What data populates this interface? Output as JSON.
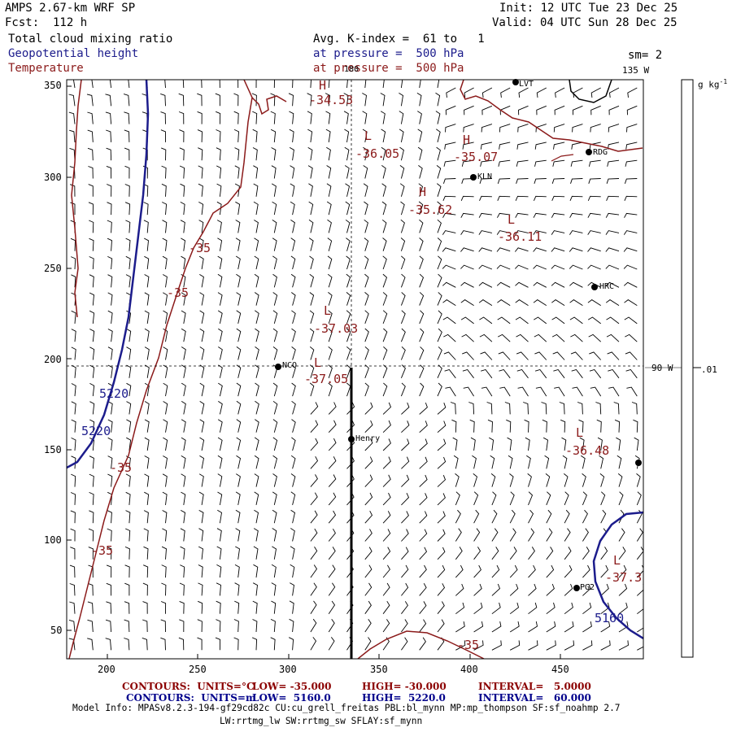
{
  "header": {
    "model": "AMPS 2.67-km WRF SP",
    "forecast": "Fcst:  112 h",
    "init": "Init: 12 UTC Tue 23 Dec 25",
    "valid": "Valid: 04 UTC Sun 28 Dec 25",
    "field1": "Total cloud mixing ratio",
    "field2": "Geopotential height",
    "field3": "Temperature",
    "avg_line": "Avg. K-index =  61 to   1",
    "pressure_line_1": "at pressure =  500 hPa",
    "pressure_line_2": "at pressure =  500 hPa",
    "smoothing": "sm= 2"
  },
  "axes": {
    "x_ticks": [
      "200",
      "250",
      "300",
      "350",
      "400",
      "450"
    ],
    "y_ticks": [
      "350",
      "300",
      "250",
      "200",
      "150",
      "100",
      "50"
    ],
    "meridian_label": "180",
    "lon_135": "135 W",
    "lon_90": "90 W"
  },
  "colorbar": {
    "unit_label": "g kg",
    "unit_exp": "-1",
    "value": ".01"
  },
  "stations": [
    {
      "name": "LVT"
    },
    {
      "name": "RDG"
    },
    {
      "name": "KLN"
    },
    {
      "name": "HRC"
    },
    {
      "name": "NCO"
    },
    {
      "name": "Henry"
    },
    {
      "name": "PG2"
    }
  ],
  "temperature_labels": [
    {
      "type": "H",
      "value": "-34.53"
    },
    {
      "type": "L",
      "value": "-36.05"
    },
    {
      "type": "H",
      "value": "-35.07"
    },
    {
      "type": "H",
      "value": "-35.62"
    },
    {
      "type": "L",
      "value": "-36.11"
    },
    {
      "type": "L",
      "value": "-37.03"
    },
    {
      "type": "L",
      "value": "-37.05"
    },
    {
      "type": "L",
      "value": "-36.48"
    },
    {
      "type": "L",
      "value": "-37.3"
    }
  ],
  "contour_labels": {
    "temp_a": "-35",
    "temp_b": "-35",
    "temp_c": "-35",
    "temp_d": "-35",
    "temp_e": "-35",
    "height_a": "5220",
    "height_b": "5220",
    "height_c": "5160"
  },
  "colors": {
    "temperature": "#8b1a1a",
    "height": "#1c1c8c",
    "barbs": "#000000",
    "coast": "#8b1a1a"
  },
  "footer": {
    "row1": {
      "label": "CONTOURS:  UNITS=°C",
      "low": "LOW= -35.000",
      "high": "HIGH= -30.000",
      "interval": "INTERVAL=   5.0000"
    },
    "row2": {
      "label": "CONTOURS:  UNITS=m",
      "low": "LOW=  5160.0",
      "high": "HIGH=  5220.0",
      "interval": "INTERVAL=   60.000"
    },
    "model_info_1": "Model Info: MPASv8.2.3-194-gf29cd82c CU:cu_grell_freitas PBL:bl_mynn MP:mp_thompson SF:sf_noahmp 2.7",
    "model_info_2": "LW:rrtmg_lw SW:rrtmg_sw SFLAY:sf_mynn"
  }
}
